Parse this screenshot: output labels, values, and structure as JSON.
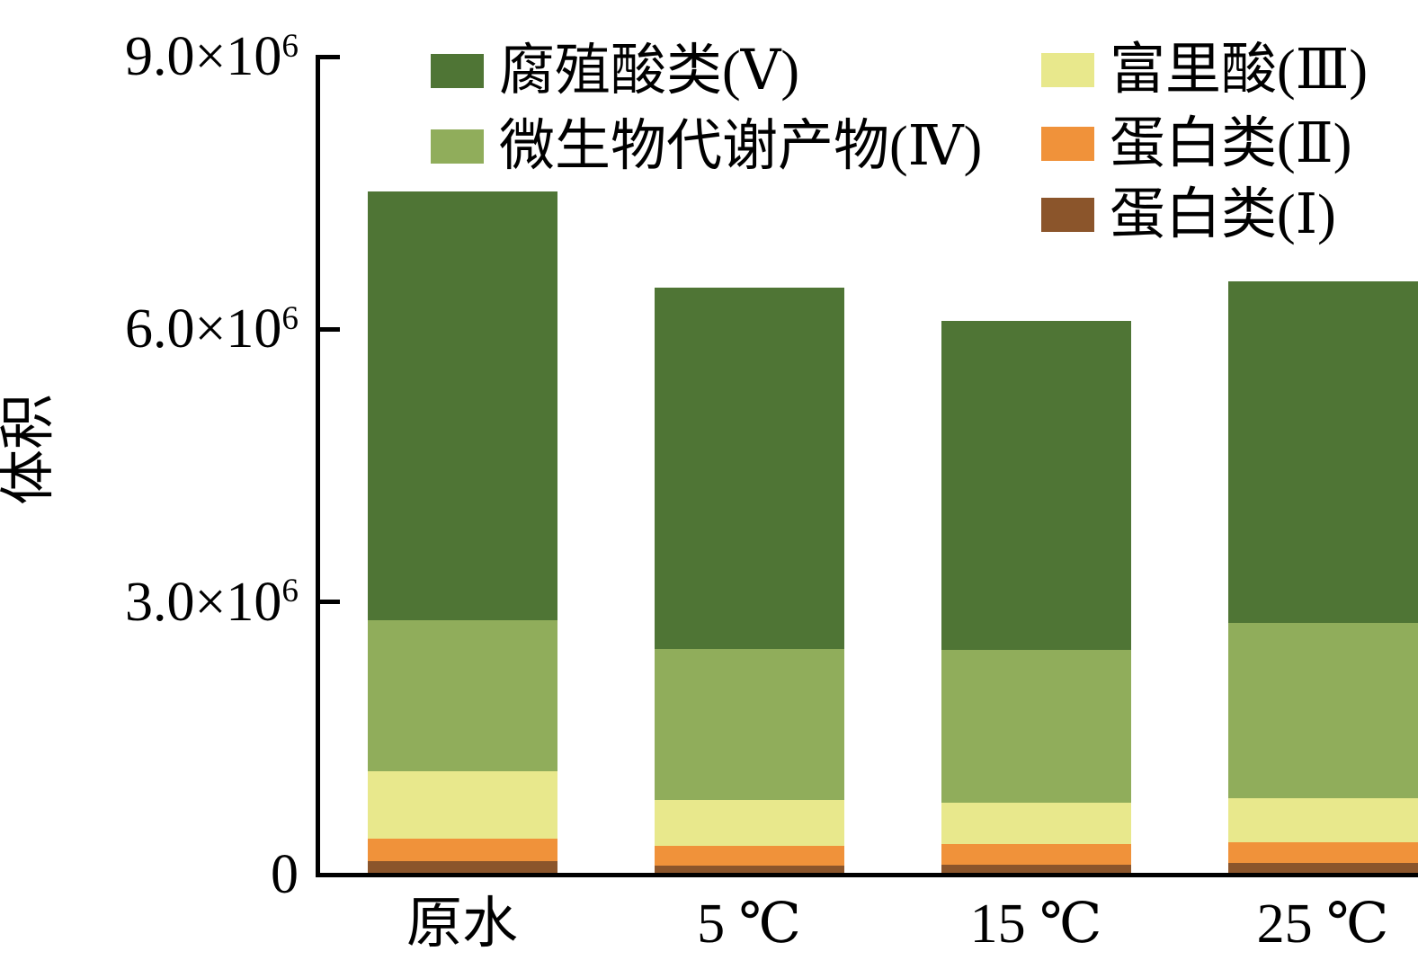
{
  "axes": {
    "y_label": "体积",
    "ylim": [
      0,
      9000000
    ],
    "y_ticks": [
      {
        "value": 0,
        "base": "0",
        "exp": ""
      },
      {
        "value": 3000000,
        "base": "3.0×10",
        "exp": "6"
      },
      {
        "value": 6000000,
        "base": "6.0×10",
        "exp": "6"
      },
      {
        "value": 9000000,
        "base": "9.0×10",
        "exp": "6"
      }
    ]
  },
  "legend": {
    "column1": [
      {
        "label": "腐殖酸类(Ⅴ)",
        "color": "#4F7535"
      },
      {
        "label": "微生物代谢产物(Ⅳ)",
        "color": "#90AD5B"
      }
    ],
    "column2": [
      {
        "label": "富里酸(Ⅲ)",
        "color": "#E8E88C"
      },
      {
        "label": "蛋白类(Ⅱ)",
        "color": "#F0923A"
      },
      {
        "label": "蛋白类(Ⅰ)",
        "color": "#8B552B"
      }
    ]
  },
  "chart_data": {
    "type": "bar",
    "stacked": true,
    "title": "",
    "xlabel": "",
    "ylabel": "体积",
    "ylim": [
      0,
      9000000
    ],
    "grid": false,
    "legend_position": "top",
    "categories": [
      "原水",
      "5 ℃",
      "15 ℃",
      "25 ℃"
    ],
    "series": [
      {
        "name": "蛋白类(Ⅰ)",
        "id": "protein-I",
        "color": "#8B552B",
        "values": [
          150000,
          100000,
          110000,
          130000
        ]
      },
      {
        "name": "蛋白类(Ⅱ)",
        "id": "protein-II",
        "color": "#F0923A",
        "values": [
          250000,
          220000,
          230000,
          230000
        ]
      },
      {
        "name": "富里酸(Ⅲ)",
        "id": "fulvic-acid-III",
        "color": "#E8E88C",
        "values": [
          740000,
          500000,
          450000,
          480000
        ]
      },
      {
        "name": "微生物代谢产物(Ⅳ)",
        "id": "microbial-metabolites-IV",
        "color": "#90AD5B",
        "values": [
          1660000,
          1660000,
          1680000,
          1930000
        ]
      },
      {
        "name": "腐殖酸类(Ⅴ)",
        "id": "humic-acid-V",
        "color": "#4F7535",
        "values": [
          4720000,
          3980000,
          3620000,
          3760000
        ]
      }
    ],
    "totals": [
      7520000,
      6460000,
      6090000,
      6530000
    ]
  }
}
